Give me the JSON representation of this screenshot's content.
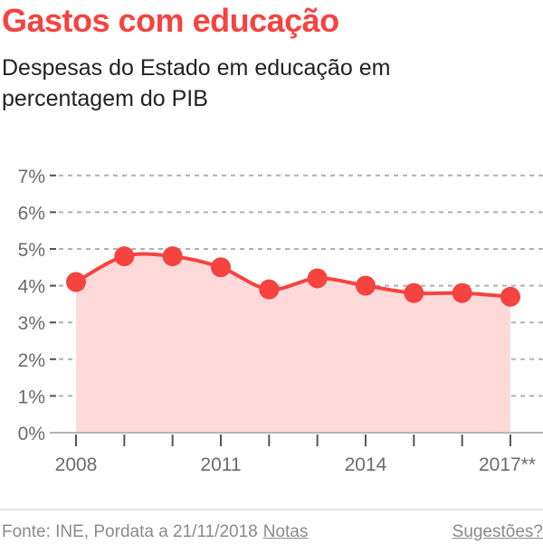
{
  "header": {
    "title": "Gastos com educação",
    "subtitle": "Despesas do Estado em educação em percentagem do PIB"
  },
  "footer": {
    "source": "Fonte: INE, Pordata a 21/11/2018",
    "notes_link": "Notas",
    "suggestions_link": "Sugestões?"
  },
  "colors": {
    "accent": "#f5433f",
    "area_fill": "#fddad9",
    "grid": "#b0b0b0",
    "axis_text": "#6b6b6b"
  },
  "chart_data": {
    "type": "area",
    "title": "Gastos com educação",
    "subtitle": "Despesas do Estado em educação em percentagem do PIB",
    "x": [
      2008,
      2009,
      2010,
      2011,
      2012,
      2013,
      2014,
      2015,
      2016,
      2017
    ],
    "x_tick_labels": [
      "2008",
      "2011",
      "2014",
      "2017**"
    ],
    "y_tick_labels": [
      "0%",
      "1%",
      "2%",
      "3%",
      "4%",
      "5%",
      "6%",
      "7%"
    ],
    "series": [
      {
        "name": "Despesas do Estado em educação (% PIB)",
        "values": [
          4.1,
          4.8,
          4.8,
          4.5,
          3.9,
          4.2,
          4.0,
          3.8,
          3.8,
          3.7
        ]
      }
    ],
    "xlabel": "",
    "ylabel": "",
    "ylim": [
      0,
      7
    ],
    "grid": true,
    "legend": "none",
    "source": "Fonte: INE, Pordata a 21/11/2018"
  }
}
